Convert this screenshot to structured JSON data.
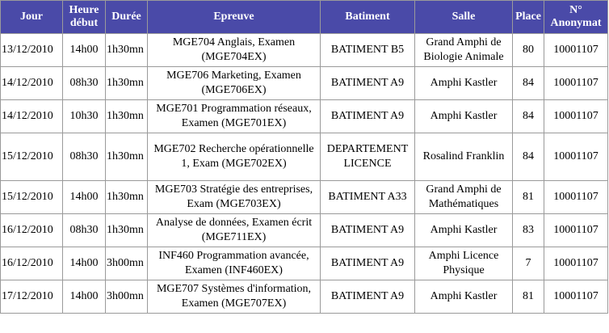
{
  "headers": {
    "jour": "Jour",
    "heure_debut": "Heure début",
    "duree": "Durée",
    "epreuve": "Epreuve",
    "batiment": "Batiment",
    "salle": "Salle",
    "place": "Place",
    "anonymat": "N° Anonymat"
  },
  "rows": [
    {
      "jour": "13/12/2010",
      "heure": "14h00",
      "duree": "1h30mn",
      "epreuve": "MGE704 Anglais, Examen (MGE704EX)",
      "batiment": "BATIMENT B5",
      "salle": "Grand Amphi de Biologie Animale",
      "place": "80",
      "anonymat": "10001107"
    },
    {
      "jour": "14/12/2010",
      "heure": "08h30",
      "duree": "1h30mn",
      "epreuve": "MGE706 Marketing, Examen (MGE706EX)",
      "batiment": "BATIMENT A9",
      "salle": "Amphi Kastler",
      "place": "84",
      "anonymat": "10001107"
    },
    {
      "jour": "14/12/2010",
      "heure": "10h30",
      "duree": "1h30mn",
      "epreuve": "MGE701 Programmation réseaux, Examen (MGE701EX)",
      "batiment": "BATIMENT A9",
      "salle": "Amphi Kastler",
      "place": "84",
      "anonymat": "10001107"
    },
    {
      "jour": "15/12/2010",
      "heure": "08h30",
      "duree": "1h30mn",
      "epreuve": "MGE702 Recherche opérationnelle 1, Exam (MGE702EX)",
      "batiment": "DEPARTEMENT LICENCE",
      "salle": "Rosalind Franklin",
      "place": "84",
      "anonymat": "10001107"
    },
    {
      "jour": "15/12/2010",
      "heure": "14h00",
      "duree": "1h30mn",
      "epreuve": "MGE703 Stratégie des entreprises, Exam (MGE703EX)",
      "batiment": "BATIMENT A33",
      "salle": "Grand Amphi de Mathématiques",
      "place": "81",
      "anonymat": "10001107"
    },
    {
      "jour": "16/12/2010",
      "heure": "08h30",
      "duree": "1h30mn",
      "epreuve": "Analyse de données, Examen écrit (MGE711EX)",
      "batiment": "BATIMENT A9",
      "salle": "Amphi Kastler",
      "place": "83",
      "anonymat": "10001107"
    },
    {
      "jour": "16/12/2010",
      "heure": "14h00",
      "duree": "3h00mn",
      "epreuve": "INF460 Programmation avancée, Examen (INF460EX)",
      "batiment": "BATIMENT A9",
      "salle": "Amphi Licence Physique",
      "place": "7",
      "anonymat": "10001107"
    },
    {
      "jour": "17/12/2010",
      "heure": "14h00",
      "duree": "3h00mn",
      "epreuve": "MGE707 Systèmes d'information, Examen (MGE707EX)",
      "batiment": "BATIMENT A9",
      "salle": "Amphi Kastler",
      "place": "81",
      "anonymat": "10001107"
    }
  ]
}
